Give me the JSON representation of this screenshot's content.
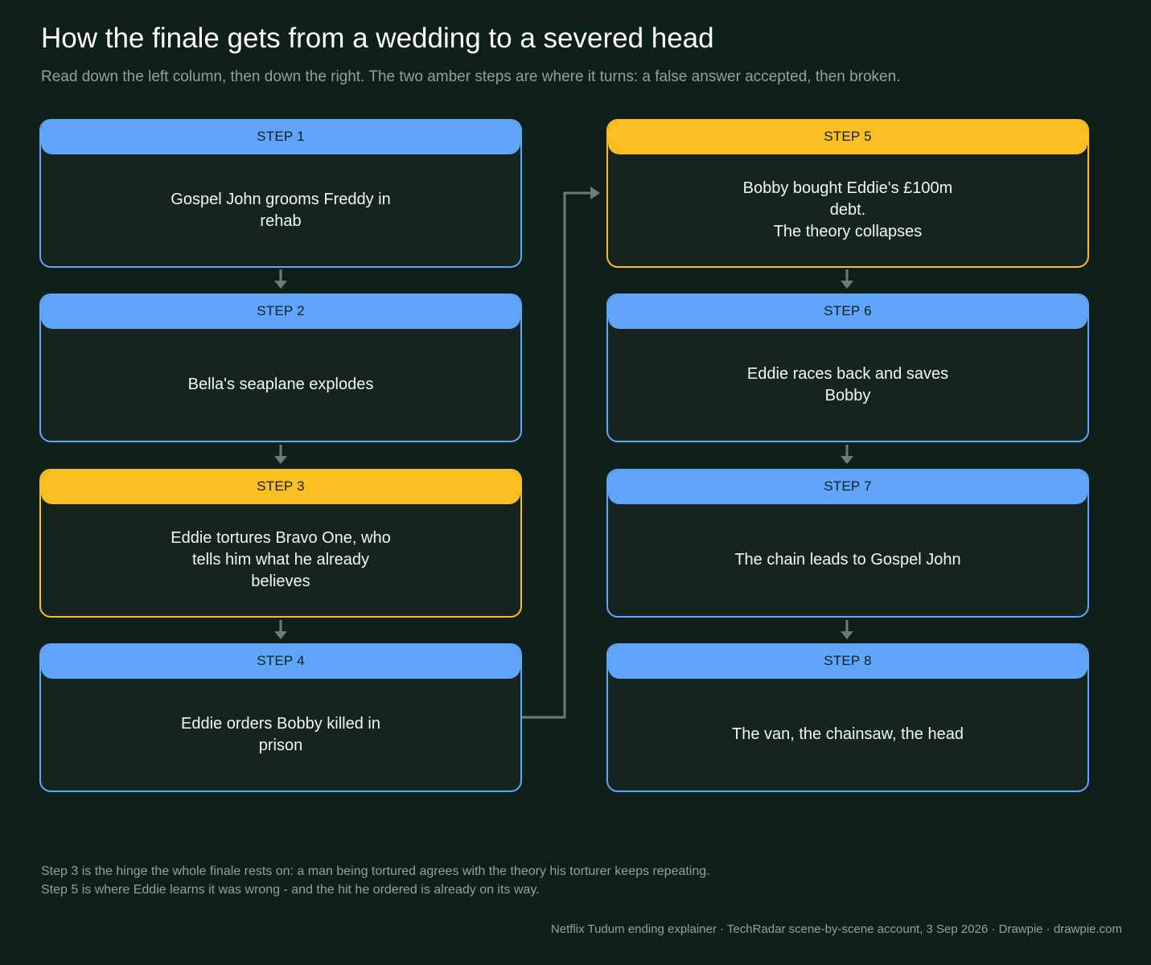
{
  "title": "How the finale gets from a wedding to a severed head",
  "subtitle": "Read down the left column, then down the right. The two amber steps are where it turns: a false answer accepted, then broken.",
  "colors": {
    "background": "#0f1f19",
    "normal": "#60a5fa",
    "turning": "#fbbf24",
    "connector": "#6b7d76"
  },
  "steps": [
    {
      "label": "STEP 1",
      "lines": [
        "Gospel John grooms Freddy in rehab"
      ],
      "kind": "normal"
    },
    {
      "label": "STEP 2",
      "lines": [
        "Bella's seaplane explodes"
      ],
      "kind": "normal"
    },
    {
      "label": "STEP 3",
      "lines": [
        "Eddie tortures Bravo One, who",
        "tells him what he already believes"
      ],
      "kind": "turning"
    },
    {
      "label": "STEP 4",
      "lines": [
        "Eddie orders Bobby killed in",
        "prison"
      ],
      "kind": "normal"
    },
    {
      "label": "STEP 5",
      "lines": [
        "Bobby bought Eddie's £100m debt.",
        "The theory collapses"
      ],
      "kind": "turning"
    },
    {
      "label": "STEP 6",
      "lines": [
        "Eddie races back and saves Bobby"
      ],
      "kind": "normal"
    },
    {
      "label": "STEP 7",
      "lines": [
        "The chain leads to Gospel John"
      ],
      "kind": "normal"
    },
    {
      "label": "STEP 8",
      "lines": [
        "The van, the chainsaw, the head"
      ],
      "kind": "normal"
    }
  ],
  "notes": [
    "Step 3 is the hinge the whole finale rests on: a man being tortured agrees with the theory his torturer keeps repeating.",
    "Step 5 is where Eddie learns it was wrong - and the hit he ordered is already on its way."
  ],
  "source": "Netflix Tudum ending explainer  ·  TechRadar scene-by-scene account, 3 Sep 2026  ·  Drawpie · drawpie.com"
}
